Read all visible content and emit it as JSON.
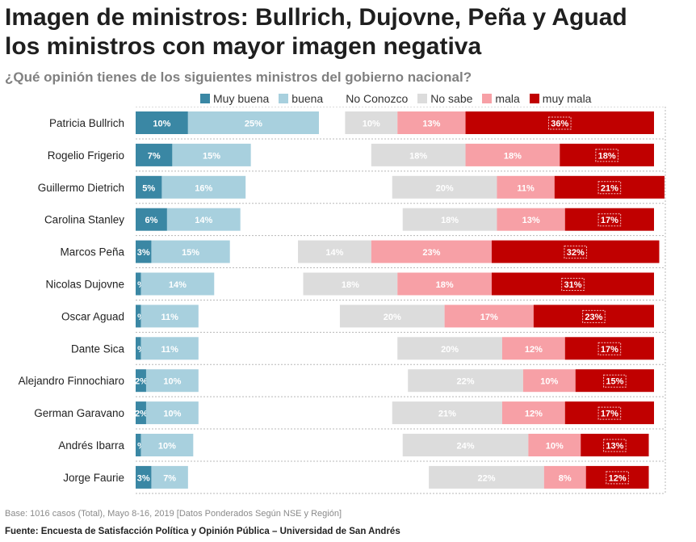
{
  "title_line1": "Imagen de ministros: Bullrich, Dujovne, Peña y Aguad",
  "title_line2": "los ministros con mayor imagen negativa",
  "subtitle": "¿Qué opinión tienes de los siguientes ministros del gobierno nacional?",
  "footnote": "Base: 1016 casos (Total), Mayo 8-16, 2019 [Datos Ponderados Según NSE y Región]",
  "source": "Fuente: Encuesta de Satisfacción Política y Opinión Pública – Universidad de San Andrés",
  "colors": {
    "muy_buena": "#3a87a4",
    "buena": "#a8d0de",
    "no_conozco": "#ffffff",
    "no_sabe": "#dcdcdc",
    "mala": "#f7a0a6",
    "muy_mala": "#c00000"
  },
  "chart_data": {
    "type": "bar",
    "orientation": "horizontal-diverging-stacked",
    "categories": [
      "Patricia Bullrich",
      "Rogelio Frigerio",
      "Guillermo Dietrich",
      "Carolina Stanley",
      "Marcos Peña",
      "Nicolas Dujovne",
      "Oscar Aguad",
      "Dante Sica",
      "Alejandro Finnochiaro",
      "German Garavano",
      "Andrés Ibarra",
      "Jorge Faurie"
    ],
    "legend_placement": "top",
    "series": [
      {
        "key": "muy_buena",
        "name": "Muy buena",
        "values": [
          10,
          7,
          5,
          6,
          3,
          1,
          1,
          1,
          2,
          2,
          1,
          3
        ],
        "labels": [
          "10%",
          "7%",
          "5%",
          "6%",
          "3%",
          "%",
          "%",
          "%",
          "2%",
          "2%",
          "%",
          "3%"
        ]
      },
      {
        "key": "buena",
        "name": "buena",
        "values": [
          25,
          15,
          16,
          14,
          15,
          14,
          11,
          11,
          10,
          10,
          10,
          7
        ],
        "labels": [
          "25%",
          "15%",
          "16%",
          "14%",
          "15%",
          "14%",
          "11%",
          "11%",
          "10%",
          "10%",
          "10%",
          "7%"
        ]
      },
      {
        "key": "no_conozco",
        "name": "No Conozco",
        "values": [
          5,
          23,
          28,
          31,
          13,
          17,
          27,
          38,
          40,
          37,
          40,
          46
        ],
        "labels": [
          "",
          "",
          "",
          "",
          "",
          "",
          "",
          "",
          "",
          "",
          "",
          ""
        ]
      },
      {
        "key": "no_sabe",
        "name": "No sabe",
        "values": [
          10,
          18,
          20,
          18,
          14,
          18,
          20,
          20,
          22,
          21,
          24,
          22
        ],
        "labels": [
          "10%",
          "18%",
          "20%",
          "18%",
          "14%",
          "18%",
          "20%",
          "20%",
          "22%",
          "21%",
          "24%",
          "22%"
        ]
      },
      {
        "key": "mala",
        "name": "mala",
        "values": [
          13,
          18,
          11,
          13,
          23,
          18,
          17,
          12,
          10,
          12,
          10,
          8
        ],
        "labels": [
          "13%",
          "18%",
          "11%",
          "13%",
          "23%",
          "18%",
          "17%",
          "12%",
          "10%",
          "12%",
          "10%",
          "8%"
        ]
      },
      {
        "key": "muy_mala",
        "name": "muy mala",
        "values": [
          36,
          18,
          21,
          17,
          32,
          31,
          23,
          17,
          15,
          17,
          13,
          12
        ],
        "labels": [
          "36%",
          "18%",
          "21%",
          "17%",
          "32%",
          "31%",
          "23%",
          "17%",
          "15%",
          "17%",
          "13%",
          "12%"
        ]
      }
    ]
  }
}
